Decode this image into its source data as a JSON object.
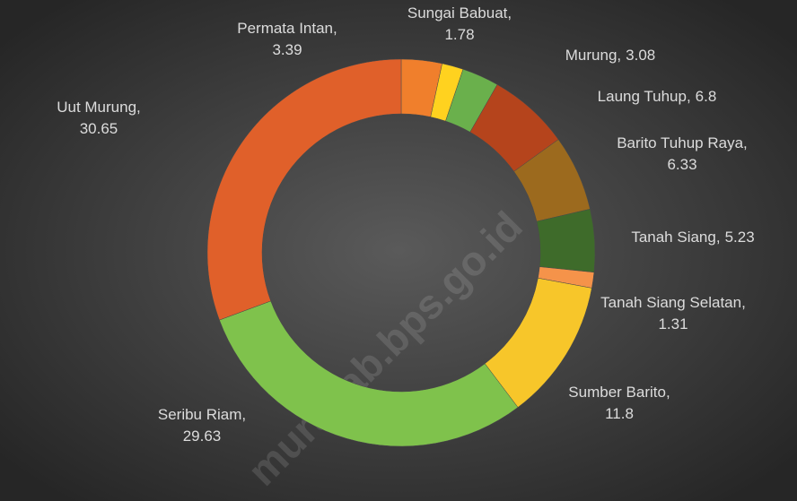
{
  "chart_data": {
    "type": "donut",
    "categories": [
      "Permata Intan",
      "Sungai Babuat",
      "Murung",
      "Laung Tuhup",
      "Barito Tuhup Raya",
      "Tanah Siang",
      "Tanah Siang Selatan",
      "Sumber Barito",
      "Seribu Riam",
      "Uut Murung"
    ],
    "values": [
      3.39,
      1.78,
      3.08,
      6.8,
      6.33,
      5.23,
      1.31,
      11.8,
      29.63,
      30.65
    ],
    "colors": [
      "#f07f2c",
      "#ffd21f",
      "#6ab04c",
      "#b5441c",
      "#9c6a1e",
      "#3e6b2a",
      "#f5934a",
      "#f7c62a",
      "#7fc24c",
      "#e0602a"
    ],
    "label_separator": ",",
    "watermark": "murakab.bps.go.id"
  }
}
